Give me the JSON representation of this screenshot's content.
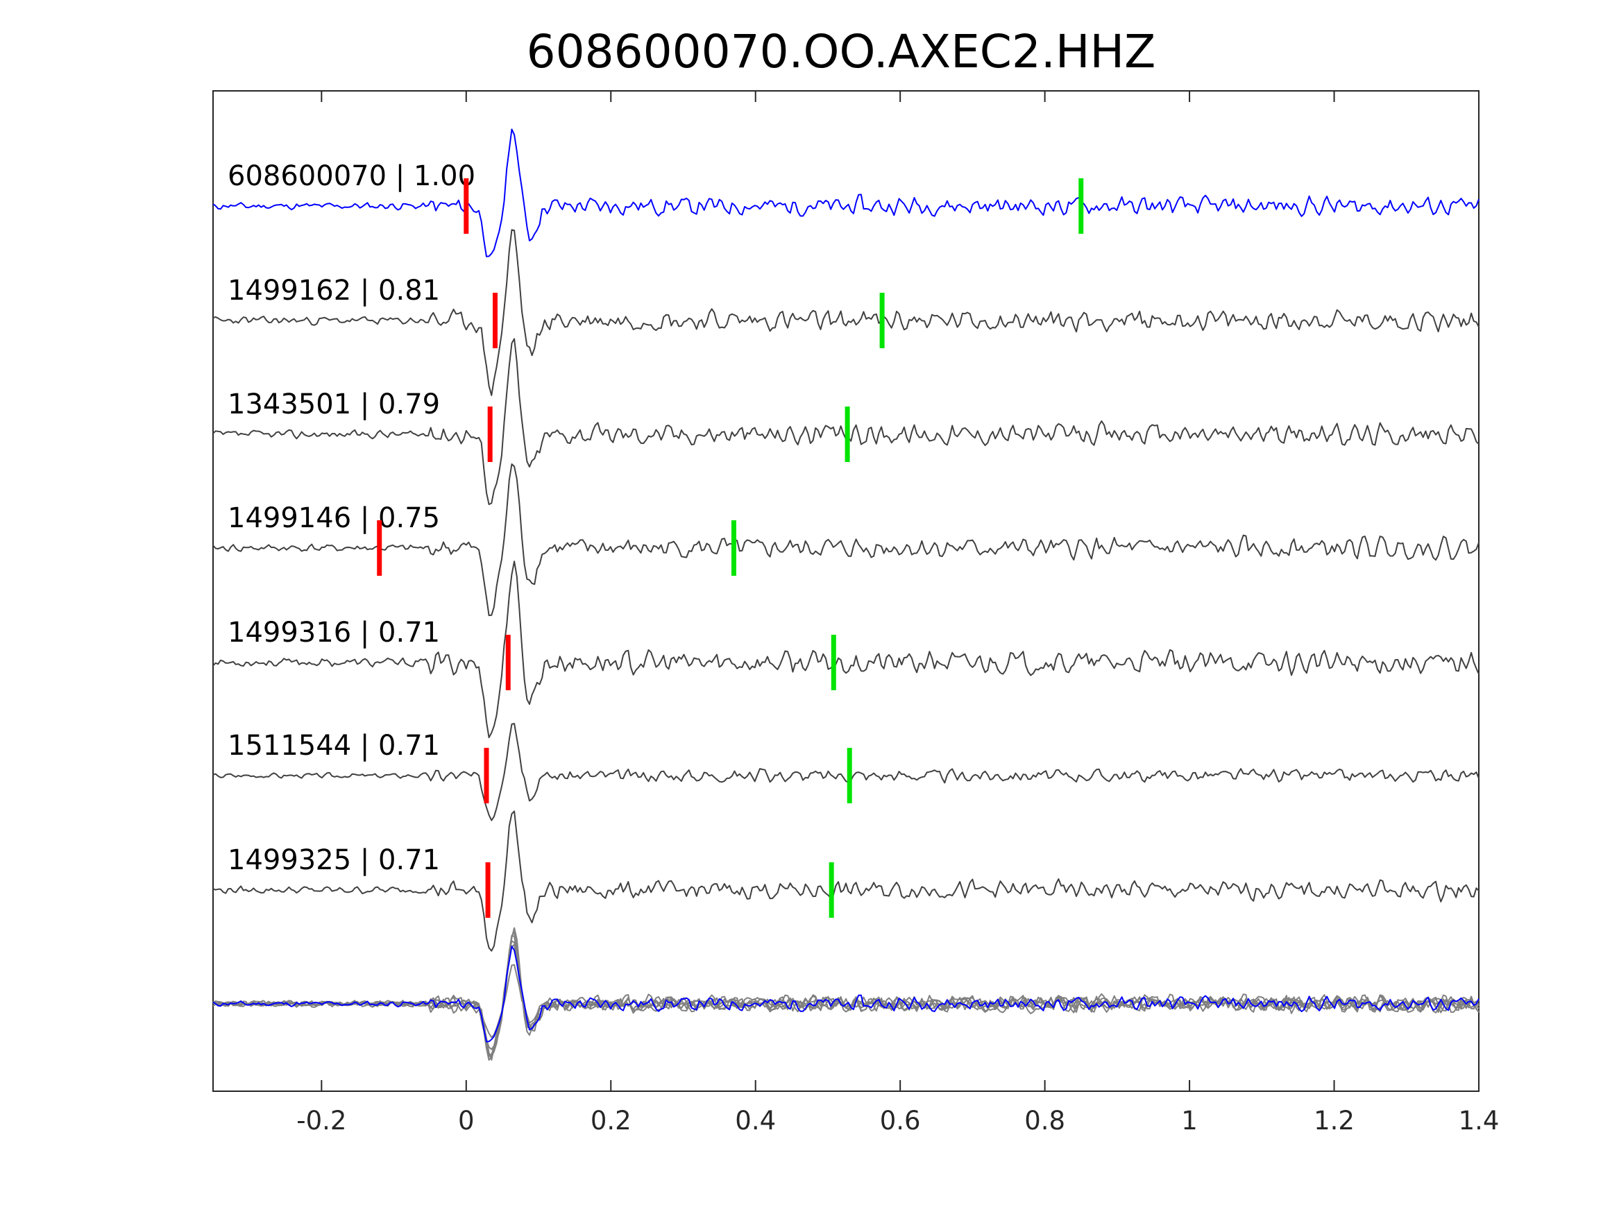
{
  "chart_data": {
    "type": "line",
    "title": "608600070.OO.AXEC2.HHZ",
    "xlabel": "",
    "ylabel": "",
    "xlim": [
      -0.35,
      1.4
    ],
    "x_ticks": [
      "-0.2",
      "0",
      "0.2",
      "0.4",
      "0.6",
      "0.8",
      "1",
      "1.2",
      "1.4"
    ],
    "x_tick_values": [
      -0.2,
      0,
      0.2,
      0.4,
      0.6,
      0.8,
      1,
      1.2,
      1.4
    ],
    "grid": false,
    "colors": {
      "template": "#0000ff",
      "match": "#404040",
      "stack": "#808080",
      "p_pick": "#ff0000",
      "s_pick": "#00e400"
    },
    "traces": [
      {
        "id": "608600070",
        "cc": "1.00",
        "label": "608600070 | 1.00",
        "color_role": "template",
        "p_pick": 0.0,
        "s_pick": 0.85,
        "amp": 1.0,
        "seed": 11
      },
      {
        "id": "1499162",
        "cc": "0.81",
        "label": "1499162 | 0.81",
        "color_role": "match",
        "p_pick": 0.04,
        "s_pick": 0.575,
        "amp": 1.15,
        "seed": 23
      },
      {
        "id": "1343501",
        "cc": "0.79",
        "label": "1343501 | 0.79",
        "color_role": "match",
        "p_pick": 0.033,
        "s_pick": 0.527,
        "amp": 1.15,
        "seed": 37
      },
      {
        "id": "1499146",
        "cc": "0.75",
        "label": "1499146 | 0.75",
        "color_role": "match",
        "p_pick": -0.12,
        "s_pick": 0.37,
        "amp": 1.1,
        "seed": 41
      },
      {
        "id": "1499316",
        "cc": "0.71",
        "label": "1499316 | 0.71",
        "color_role": "match",
        "p_pick": 0.058,
        "s_pick": 0.508,
        "amp": 1.25,
        "seed": 53
      },
      {
        "id": "1511544",
        "cc": "0.71",
        "label": "1511544 | 0.71",
        "color_role": "match",
        "p_pick": 0.028,
        "s_pick": 0.53,
        "amp": 0.7,
        "seed": 67
      },
      {
        "id": "1499325",
        "cc": "0.71",
        "label": "1499325 | 0.71",
        "color_role": "match",
        "p_pick": 0.03,
        "s_pick": 0.505,
        "amp": 1.0,
        "seed": 79
      }
    ],
    "stack": {
      "description_role": "overlay",
      "count": 7
    }
  }
}
